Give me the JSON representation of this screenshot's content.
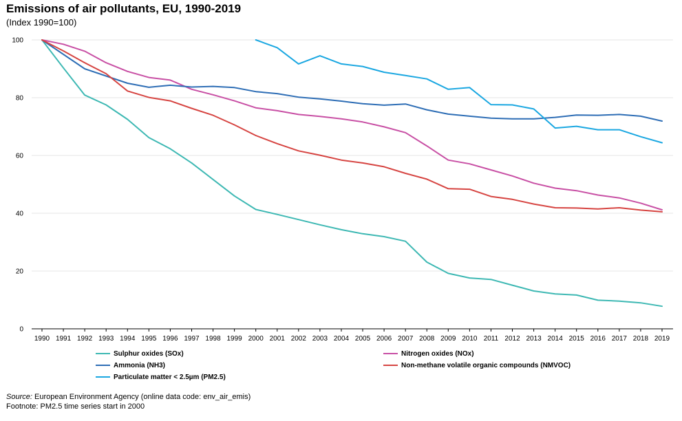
{
  "header": {
    "title": "Emissions of air pollutants, EU, 1990-2019",
    "subtitle": "(Index 1990=100)"
  },
  "footer": {
    "source_label": "Source:",
    "source_text": "European Environment Agency (online data code: env_air_emis)",
    "footnote": "Footnote: PM2.5 time series start in 2000"
  },
  "chart_data": {
    "type": "line",
    "title": "Emissions of air pollutants, EU, 1990-2019",
    "subtitle": "(Index 1990=100)",
    "xlabel": "",
    "ylabel": "",
    "x": [
      1990,
      1991,
      1992,
      1993,
      1994,
      1995,
      1996,
      1997,
      1998,
      1999,
      2000,
      2001,
      2002,
      2003,
      2004,
      2005,
      2006,
      2007,
      2008,
      2009,
      2010,
      2011,
      2012,
      2013,
      2014,
      2015,
      2016,
      2017,
      2018,
      2019
    ],
    "x_tick_labels": [
      "1990",
      "1991",
      "1992",
      "1993",
      "1994",
      "1995",
      "1996",
      "1997",
      "1998",
      "1999",
      "2000",
      "2001",
      "2002",
      "2003",
      "2004",
      "2005",
      "2006",
      "2007",
      "2008",
      "2009",
      "2010",
      "2011",
      "2012",
      "2013",
      "2014",
      "2015",
      "2016",
      "2017",
      "2018",
      "2019"
    ],
    "ylim": [
      0,
      100
    ],
    "y_ticks": [
      0,
      20,
      40,
      60,
      80,
      100
    ],
    "grid": "horizontal",
    "legend_position": "bottom",
    "series": [
      {
        "name": "Sulphur oxides (SOx)",
        "color": "#3db8b3",
        "values": [
          100,
          90.3,
          80.9,
          77.5,
          72.5,
          66.2,
          62.3,
          57.4,
          51.7,
          46.0,
          41.3,
          39.6,
          37.8,
          36.0,
          34.3,
          32.9,
          31.9,
          30.3,
          23.1,
          19.2,
          17.6,
          17.1,
          15.1,
          13.1,
          12.1,
          11.7,
          9.9,
          9.6,
          9.0,
          7.8
        ]
      },
      {
        "name": "Nitrogen oxides (NOx)",
        "color": "#c84fa4",
        "values": [
          100,
          98.5,
          96.1,
          92.1,
          89.1,
          87.0,
          86.1,
          82.9,
          81.0,
          78.9,
          76.5,
          75.5,
          74.2,
          73.5,
          72.7,
          71.6,
          69.9,
          67.9,
          63.3,
          58.4,
          57.1,
          55.0,
          52.9,
          50.4,
          48.7,
          47.8,
          46.3,
          45.3,
          43.5,
          41.2
        ]
      },
      {
        "name": "Ammonia (NH3)",
        "color": "#2d6db5",
        "values": [
          100,
          95.0,
          90.0,
          87.5,
          85.0,
          83.6,
          84.3,
          83.7,
          83.9,
          83.5,
          82.1,
          81.4,
          80.2,
          79.6,
          78.8,
          77.9,
          77.4,
          77.8,
          75.8,
          74.3,
          73.6,
          72.9,
          72.7,
          72.7,
          73.2,
          74.0,
          73.9,
          74.2,
          73.6,
          71.9
        ]
      },
      {
        "name": "Non-methane volatile organic compounds (NMVOC)",
        "color": "#d64441",
        "values": [
          100,
          96.2,
          92.1,
          88.3,
          82.3,
          80.1,
          78.9,
          76.3,
          73.9,
          70.6,
          66.9,
          64.1,
          61.6,
          60.1,
          58.4,
          57.4,
          56.1,
          53.8,
          51.8,
          48.5,
          48.3,
          45.8,
          44.8,
          43.2,
          41.9,
          41.8,
          41.5,
          41.9,
          41.1,
          40.5
        ]
      },
      {
        "name": "Particulate matter < 2.5µm (PM2.5)",
        "color": "#1aa7e1",
        "values": [
          null,
          null,
          null,
          null,
          null,
          null,
          null,
          null,
          null,
          null,
          100,
          97.3,
          91.7,
          94.5,
          91.7,
          90.8,
          88.8,
          87.7,
          86.5,
          82.9,
          83.5,
          77.6,
          77.5,
          76.1,
          69.5,
          70.1,
          68.9,
          68.9,
          66.5,
          64.4
        ]
      }
    ],
    "legend": [
      [
        "Sulphur oxides (SOx)",
        "Nitrogen oxides (NOx)"
      ],
      [
        "Ammonia (NH3)",
        "Non-methane volatile organic compounds (NMVOC)"
      ],
      [
        "Particulate matter < 2.5µm (PM2.5)"
      ]
    ]
  }
}
